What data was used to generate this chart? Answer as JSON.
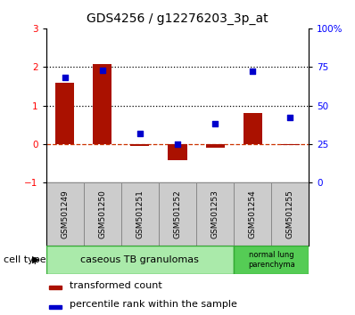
{
  "title": "GDS4256 / g12276203_3p_at",
  "samples": [
    "GSM501249",
    "GSM501250",
    "GSM501251",
    "GSM501252",
    "GSM501253",
    "GSM501254",
    "GSM501255"
  ],
  "red_values": [
    1.6,
    2.08,
    -0.04,
    -0.42,
    -0.1,
    0.8,
    -0.02
  ],
  "blue_values": [
    68,
    73,
    32,
    25,
    38,
    72,
    42
  ],
  "ylim_left": [
    -1,
    3
  ],
  "ylim_right": [
    0,
    100
  ],
  "yticks_left": [
    -1,
    0,
    1,
    2,
    3
  ],
  "yticks_right": [
    0,
    25,
    50,
    75,
    100
  ],
  "ytick_labels_right": [
    "0",
    "25",
    "50",
    "75",
    "100%"
  ],
  "legend_red": "transformed count",
  "legend_blue": "percentile rank within the sample",
  "bar_color": "#aa1100",
  "dot_color": "#0000cc",
  "bar_width": 0.5,
  "title_fontsize": 10,
  "tick_fontsize": 7.5,
  "sample_fontsize": 6.5,
  "cell_fontsize": 8,
  "legend_fontsize": 8
}
